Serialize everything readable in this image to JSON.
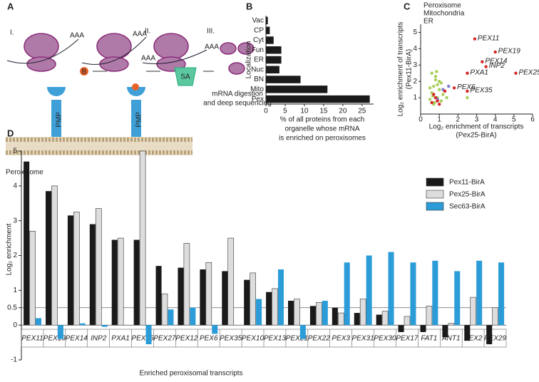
{
  "panel_labels": [
    "A",
    "B",
    "C",
    "D"
  ],
  "diagram": {
    "steps": [
      "I.",
      "II.",
      "III."
    ],
    "poly_a": [
      "AAA",
      "AAA",
      "AAA",
      "AAA"
    ],
    "biotin": "B",
    "pmp": [
      "PMP",
      "PMP"
    ],
    "streptavidin": "SA",
    "organelle": "Peroxisome",
    "final_step": [
      "mRNA digestion",
      "and deep sequencing"
    ]
  },
  "chart_data": [
    {
      "type": "bar",
      "orientation": "horizontal",
      "ylabel": "Localization",
      "xlabel": [
        "% of all proteins from each",
        "organelle whose mRNA",
        "is enriched on peroxisomes"
      ],
      "categories": [
        "Vac",
        "CP",
        "Cyt",
        "Fun",
        "ER",
        "Nuc",
        "BN",
        "Mito",
        "Pex"
      ],
      "values": [
        0.5,
        1,
        2,
        4,
        4,
        3.5,
        9,
        16,
        27
      ],
      "color": "#1a1a1a",
      "xlim": [
        0,
        28
      ],
      "xticks": [
        0,
        5,
        10,
        15,
        20,
        25
      ]
    },
    {
      "type": "scatter",
      "xlabel": [
        "Log₂ enrichment of transcripts",
        "(Pex25-BirA)"
      ],
      "ylabel": [
        "Log₂ enrichment of transcripts",
        "(Pex11-BirA)"
      ],
      "xlim": [
        0,
        6
      ],
      "ylim": [
        0,
        5.5
      ],
      "xticks": [
        0,
        1,
        2,
        3,
        4,
        5,
        6
      ],
      "yticks": [
        1,
        2,
        3,
        4,
        5
      ],
      "series": [
        {
          "name": "Mitochondria",
          "color": "#a8cf5a",
          "x": [
            0.5,
            0.6,
            0.7,
            0.8,
            0.9,
            1.0,
            1.1,
            0.6,
            0.8,
            1.2,
            0.7,
            0.9,
            1.0,
            1.4,
            0.5,
            0.75,
            1.1,
            0.65,
            2.5,
            0.85
          ],
          "y": [
            0.9,
            1.3,
            1.7,
            2.1,
            1.0,
            1.5,
            0.8,
            2.5,
            2.3,
            1.2,
            0.6,
            1.8,
            2.0,
            1.0,
            1.6,
            0.7,
            1.9,
            1.1,
            1.0,
            2.6
          ]
        },
        {
          "name": "ER",
          "color": "#7b7bd0",
          "x": [
            1.2,
            1.5,
            0.9
          ],
          "y": [
            1.5,
            1.7,
            0.9
          ]
        },
        {
          "name": "Peroxisome",
          "color": "#d62728",
          "x": [
            2.9,
            4.0,
            3.3,
            3.5,
            2.5,
            5.1,
            1.8,
            2.5,
            0.6,
            0.8,
            1.0,
            0.7,
            1.3,
            0.9
          ],
          "y": [
            4.6,
            3.8,
            3.2,
            2.9,
            2.5,
            2.5,
            1.6,
            1.4,
            0.7,
            1.0,
            0.6,
            1.2,
            1.4,
            0.8
          ],
          "labels": [
            "PEX11",
            "PEX19",
            "PEX14",
            "INP2",
            "PXA1",
            "PEX25",
            "PEX6",
            "PEX35",
            null,
            null,
            null,
            null,
            null,
            null
          ]
        }
      ],
      "legend_order": [
        "Peroxisome",
        "Mitochondria",
        "ER"
      ]
    },
    {
      "type": "bar",
      "orientation": "vertical",
      "ylabel": "Log₂ enrichment",
      "xlabel": "Enriched peroxisomal transcripts",
      "categories": [
        "PEX11",
        "PEX19",
        "PEX14",
        "INP2",
        "PXA1",
        "PEX25",
        "PEX27",
        "PEX12",
        "PEX6",
        "PEX35",
        "PEX10",
        "PEX13",
        "PEX21",
        "PEX22",
        "PEX3",
        "PEX31",
        "PEX30",
        "PEX17",
        "FAT1",
        "ANT1",
        "PEX2",
        "PEX29"
      ],
      "ylim": [
        -1,
        5
      ],
      "yticks": [
        -1,
        0,
        0.5,
        1,
        2,
        3,
        4,
        5
      ],
      "reference_line": 0.5,
      "series": [
        {
          "name": "Pex11-BirA",
          "color": "#1a1a1a",
          "values": [
            4.7,
            3.85,
            3.15,
            2.9,
            2.45,
            2.45,
            1.7,
            1.65,
            1.6,
            1.55,
            1.3,
            0.95,
            0.7,
            0.55,
            0.5,
            0.35,
            0.3,
            -0.2,
            -0.2,
            -0.35,
            -0.45,
            -0.55
          ]
        },
        {
          "name": "Pex25-BirA",
          "color": "#dddddd",
          "values": [
            2.7,
            4.0,
            3.25,
            3.35,
            2.5,
            5.0,
            0.9,
            2.35,
            1.8,
            2.5,
            1.5,
            1.05,
            0.75,
            0.65,
            0.35,
            0.75,
            0.4,
            0.25,
            0.55,
            0.05,
            0.8,
            0.5
          ]
        },
        {
          "name": "Sec63-BirA",
          "color": "#2b9cd8",
          "values": [
            0.2,
            -0.4,
            0.05,
            -0.05,
            0,
            -0.55,
            0.45,
            0.5,
            -0.25,
            0,
            0.75,
            1.6,
            -0.4,
            0.7,
            1.8,
            2.0,
            2.1,
            1.8,
            1.85,
            1.55,
            1.85,
            1.8
          ]
        }
      ]
    }
  ]
}
